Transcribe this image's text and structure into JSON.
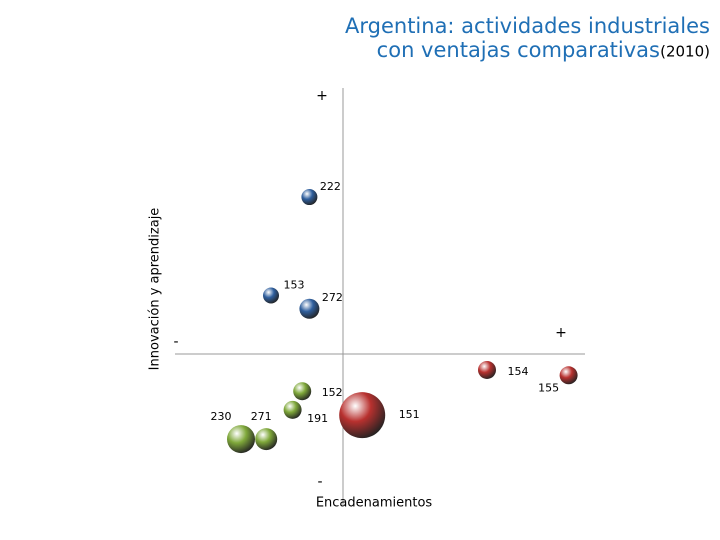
{
  "chart_data": {
    "type": "scatter",
    "title": [
      "Argentina: actividades industriales",
      "con ventajas comparativas"
    ],
    "title_suffix": "(2010)",
    "x_label": "Encadenamientos",
    "y_label": "Innovación y aprendizaje",
    "x_ends": [
      "-",
      "+"
    ],
    "y_ends": [
      "-",
      "+"
    ],
    "xlim": [
      -10,
      10
    ],
    "ylim": [
      -10,
      10
    ],
    "point_labels": [
      "222",
      "153",
      "272",
      "154",
      "155",
      "151",
      "152",
      "191",
      "230",
      "271"
    ],
    "x": [
      -1.4,
      -3.0,
      -1.4,
      6.0,
      9.4,
      0.8,
      -1.7,
      -2.1,
      -4.25,
      -3.2
    ],
    "values": [
      5.9,
      2.2,
      1.7,
      -0.6,
      -0.8,
      -2.3,
      -1.4,
      -2.1,
      -3.2,
      -3.2
    ],
    "sizes": [
      8,
      8,
      10,
      9,
      9,
      23,
      9,
      9,
      14,
      11
    ],
    "colors": [
      "#2f5f9e",
      "#2f5f9e",
      "#2f5f9e",
      "#b8312f",
      "#b8312f",
      "#b8312f",
      "#7fa83a",
      "#7fa83a",
      "#7fa83a",
      "#7fa83a"
    ]
  }
}
